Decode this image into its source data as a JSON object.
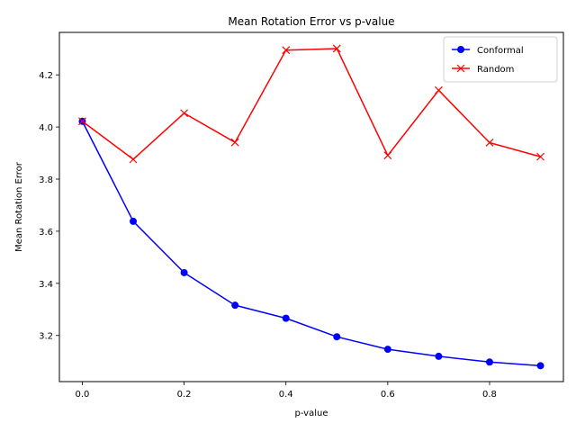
{
  "chart_data": {
    "type": "line",
    "title": "Mean Rotation Error vs p-value",
    "xlabel": "p-value",
    "ylabel": "Mean Rotation Error",
    "x": [
      0.0,
      0.1,
      0.2,
      0.3,
      0.4,
      0.5,
      0.6,
      0.7,
      0.8,
      0.9
    ],
    "xlim": [
      -0.045,
      0.945
    ],
    "ylim": [
      3.023,
      4.363
    ],
    "x_ticks": [
      "0.0",
      "0.2",
      "0.4",
      "0.6",
      "0.8"
    ],
    "x_tick_values": [
      0.0,
      0.2,
      0.4,
      0.6,
      0.8
    ],
    "y_ticks": [
      "3.2",
      "3.4",
      "3.6",
      "3.8",
      "4.0",
      "4.2"
    ],
    "y_tick_values": [
      3.2,
      3.4,
      3.6,
      3.8,
      4.0,
      4.2
    ],
    "grid": false,
    "legend_position": "top-right",
    "series": [
      {
        "name": "Conformal",
        "color": "#0000ff",
        "marker": "circle",
        "values": [
          4.022,
          3.638,
          3.441,
          3.316,
          3.266,
          3.195,
          3.147,
          3.12,
          3.098,
          3.084
        ]
      },
      {
        "name": "Random",
        "color": "#ff0000",
        "marker": "x",
        "values": [
          4.022,
          3.876,
          4.053,
          3.941,
          4.295,
          4.301,
          3.891,
          4.141,
          3.94,
          3.886
        ]
      }
    ]
  }
}
